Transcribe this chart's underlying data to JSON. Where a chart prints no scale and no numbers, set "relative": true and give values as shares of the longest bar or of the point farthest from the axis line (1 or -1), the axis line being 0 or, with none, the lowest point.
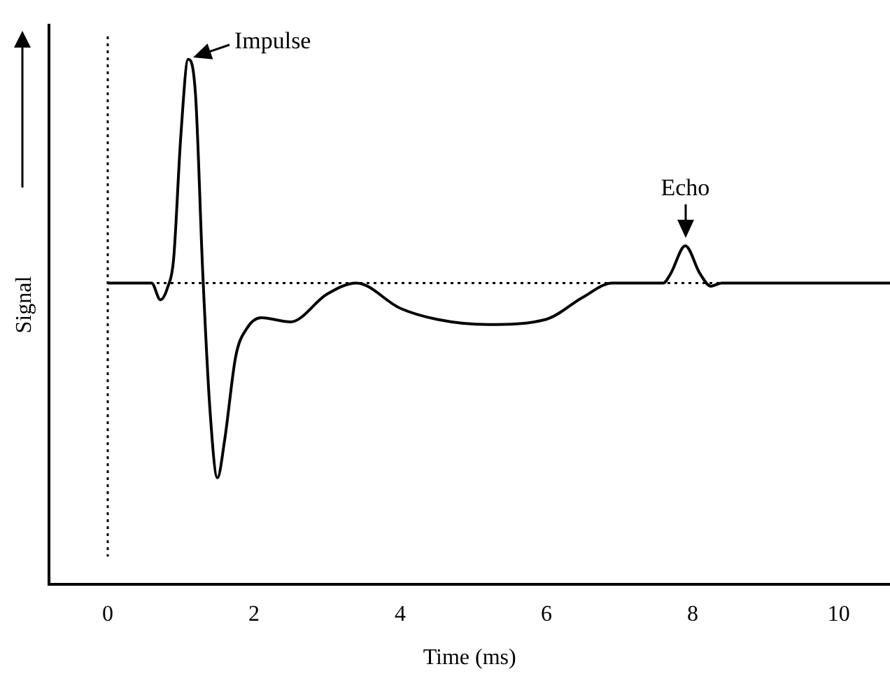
{
  "chart_data": {
    "type": "line",
    "xlabel": "Time (ms)",
    "ylabel": "Signal",
    "relative": true,
    "xlim": [
      -0.8,
      10.7
    ],
    "xticks": [
      0,
      2,
      4,
      6,
      8,
      10
    ],
    "grid": false,
    "legend": false,
    "marker": "none",
    "line_style": "solid",
    "series": [
      {
        "color": "#000000",
        "x": [
          0,
          0.6,
          0.72,
          0.82,
          0.9,
          1.0,
          1.1,
          1.2,
          1.3,
          1.4,
          1.5,
          1.6,
          1.75,
          1.9,
          2.1,
          2.5,
          3.0,
          3.4,
          4.0,
          4.5,
          5.2,
          6.0,
          6.5,
          6.9,
          7.3,
          7.6,
          7.7,
          7.9,
          8.1,
          8.25,
          8.4,
          10.7
        ],
        "values": [
          0.574,
          0.574,
          0.542,
          0.566,
          0.618,
          0.855,
          1,
          0.934,
          0.592,
          0.329,
          0.203,
          0.276,
          0.434,
          0.487,
          0.508,
          0.5,
          0.553,
          0.574,
          0.526,
          0.505,
          0.495,
          0.505,
          0.547,
          0.574,
          0.574,
          0.574,
          0.592,
          0.645,
          0.592,
          0.568,
          0.574,
          0.574
        ]
      }
    ],
    "ref_lines": [
      {
        "axis": "y",
        "value": 0.574,
        "line_style": "dotted",
        "color": "#000000"
      },
      {
        "axis": "x",
        "value": 0,
        "line_style": "dotted",
        "color": "#000000"
      }
    ],
    "annotations": [
      {
        "text": "Impulse",
        "x": 1.1,
        "y": 1
      },
      {
        "text": "Echo",
        "x": 7.9,
        "y": 0.645
      }
    ]
  }
}
